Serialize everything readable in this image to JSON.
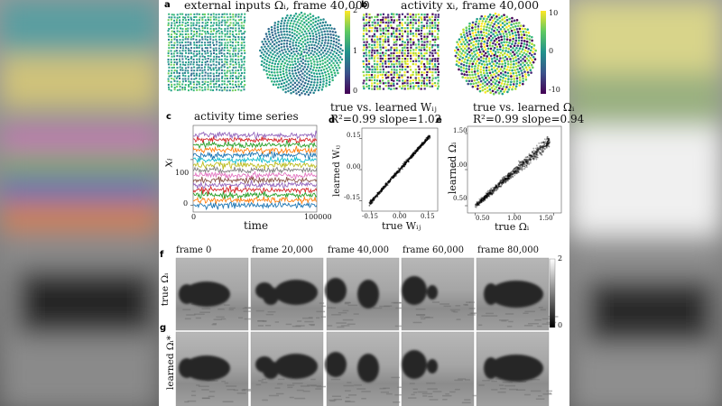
{
  "panels": {
    "a": {
      "label": "a",
      "title": "external inputs Ωᵢ, frame 40,000",
      "colorbar_ticks": [
        "2",
        "1",
        "0"
      ]
    },
    "b": {
      "label": "b",
      "title": "activity xᵢ, frame 40,000",
      "colorbar_ticks": [
        "10",
        "0",
        "-10"
      ]
    },
    "c": {
      "label": "c",
      "title": "activity time series",
      "ylabel": "xᵢ",
      "xlabel": "time",
      "yticks": [
        "100",
        "0"
      ],
      "xticks": [
        "0",
        "100000"
      ]
    },
    "d": {
      "label": "d",
      "title": "true vs. learned Wᵢⱼ",
      "stats": "R²=0.99  slope=1.02",
      "ylabel": "learned Wᵢⱼ",
      "xlabel": "true Wᵢⱼ",
      "xticks": [
        "-0.15",
        "0.00",
        "0.15"
      ],
      "yticks": [
        "0.15",
        "0.00",
        "-0.15"
      ]
    },
    "e": {
      "label": "e",
      "title": "true vs. learned Ωᵢ",
      "stats": "R²=0.99  slope=0.94",
      "ylabel": "learned Ωᵢ",
      "xlabel": "true Ωᵢ",
      "xticks": [
        "0.50",
        "1.00",
        "1.50"
      ],
      "yticks": [
        "1.50",
        "1.00",
        "0.50"
      ]
    },
    "f": {
      "label": "f",
      "row_label": "true Ωᵢ",
      "frames": [
        "frame 0",
        "frame 20,000",
        "frame 40,000",
        "frame 60,000",
        "frame 80,000"
      ],
      "colorbar_ticks": [
        "2",
        "0"
      ]
    },
    "g": {
      "label": "g",
      "row_label": "learned Ωᵢ*"
    }
  },
  "colors": {
    "viridis_dark": "#440154",
    "viridis_mid": "#21918c",
    "viridis_light": "#fde725",
    "series": [
      "#1f77b4",
      "#ff7f0e",
      "#2ca02c",
      "#d62728",
      "#9467bd",
      "#8c564b",
      "#e377c2",
      "#7f7f7f",
      "#bcbd22",
      "#17becf"
    ]
  },
  "chart_data": [
    {
      "type": "line",
      "title": "activity time series",
      "xlabel": "time",
      "ylabel": "xᵢ",
      "xlim": [
        0,
        100000
      ],
      "ylim": [
        -15,
        175
      ],
      "series_count": 15
    },
    {
      "type": "scatter",
      "title": "true vs. learned Wᵢⱼ",
      "xlabel": "true Wᵢⱼ",
      "ylabel": "learned Wᵢⱼ",
      "xlim": [
        -0.2,
        0.2
      ],
      "ylim": [
        -0.2,
        0.2
      ],
      "r_squared": 0.99,
      "slope": 1.02
    },
    {
      "type": "scatter",
      "title": "true vs. learned Ωᵢ",
      "xlabel": "true Ωᵢ",
      "ylabel": "learned Ωᵢ",
      "xlim": [
        0.4,
        1.6
      ],
      "ylim": [
        0.4,
        1.6
      ],
      "r_squared": 0.99,
      "slope": 0.94
    }
  ]
}
